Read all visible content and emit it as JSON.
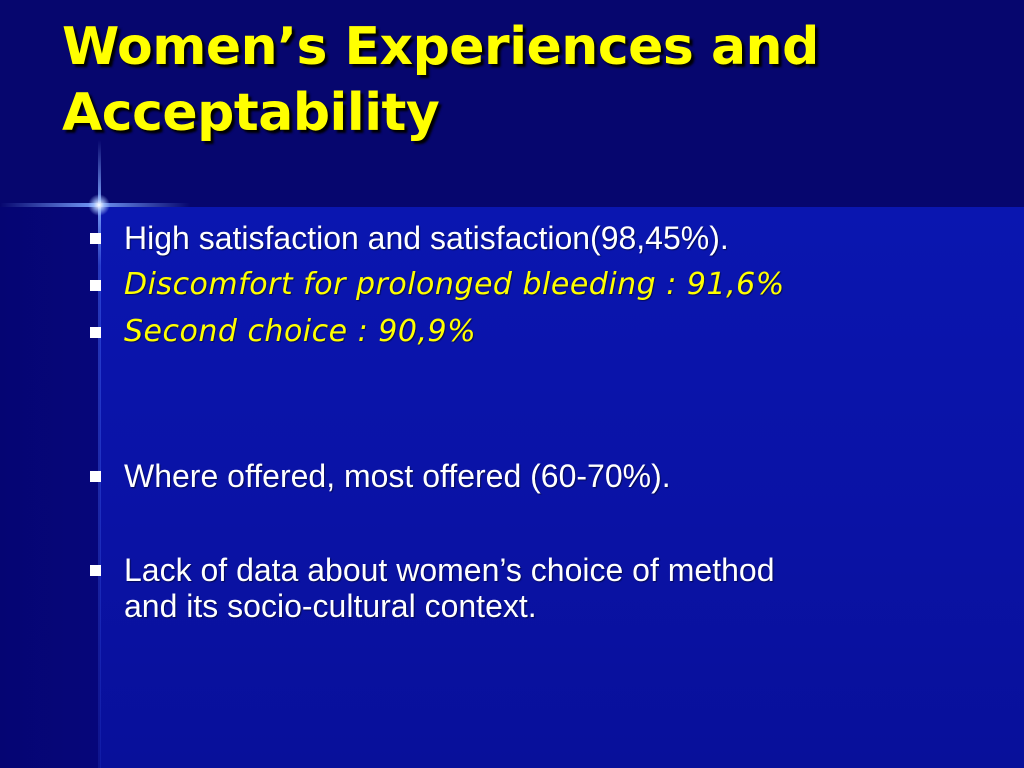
{
  "slide": {
    "title_line1": "Women’s Experiences and",
    "title_line2": "Acceptability",
    "bullets": [
      {
        "text": "High satisfaction and satisfaction(98,45%).",
        "color": "#ffffff"
      },
      {
        "text": "Discomfort for prolonged bleeding : 91,6%",
        "color": "#ffff00"
      },
      {
        "text": "Second choice  : 90,9%",
        "color": "#ffff00"
      },
      {
        "text": "Where offered, most offered (60-70%).",
        "color": "#ffffff"
      },
      {
        "text_line1": "Lack of data about women’s choice of method",
        "text_line2": "and its socio-cultural context.",
        "color": "#ffffff"
      }
    ],
    "colors": {
      "title": "#ffff00",
      "background": "#00008b",
      "header_band": "#06066e",
      "body_text": "#ffffff",
      "highlight_text": "#ffff00"
    },
    "icons": {
      "bullet": "square-bullet-icon",
      "ornament": "sparkle-cross-icon"
    }
  }
}
